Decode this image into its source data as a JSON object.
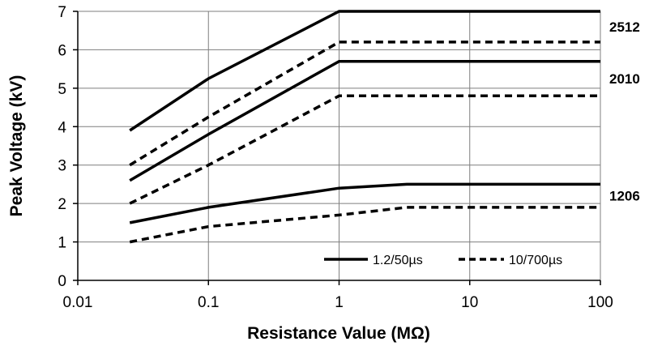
{
  "chart_data": {
    "type": "line",
    "xlabel": "Resistance Value (MΩ)",
    "ylabel": "Peak Voltage (kV)",
    "xscale": "log",
    "xlim": [
      0.01,
      100
    ],
    "ylim": [
      0,
      7
    ],
    "x_ticks": [
      "0.01",
      "0.1",
      "1",
      "10",
      "100"
    ],
    "y_ticks": [
      "0",
      "1",
      "2",
      "3",
      "4",
      "5",
      "6",
      "7"
    ],
    "grid": true,
    "legend_position": "bottom-right",
    "legend": [
      {
        "label": "1.2/50µs",
        "style": "solid"
      },
      {
        "label": "10/700µs",
        "style": "dashed"
      }
    ],
    "series": [
      {
        "group": "2512",
        "pulse": "1.2/50µs",
        "style": "solid",
        "x": [
          0.025,
          0.1,
          1,
          100
        ],
        "y": [
          3.9,
          5.25,
          7.0,
          7.0
        ]
      },
      {
        "group": "2512",
        "pulse": "10/700µs",
        "style": "dashed",
        "x": [
          0.025,
          0.1,
          1,
          100
        ],
        "y": [
          3.0,
          4.25,
          6.2,
          6.2
        ]
      },
      {
        "group": "2010",
        "pulse": "1.2/50µs",
        "style": "solid",
        "x": [
          0.025,
          0.1,
          1,
          100
        ],
        "y": [
          2.6,
          3.8,
          5.7,
          5.7
        ]
      },
      {
        "group": "2010",
        "pulse": "10/700µs",
        "style": "dashed",
        "x": [
          0.025,
          0.1,
          1,
          100
        ],
        "y": [
          2.0,
          3.0,
          4.8,
          4.8
        ]
      },
      {
        "group": "1206",
        "pulse": "1.2/50µs",
        "style": "solid",
        "x": [
          0.025,
          0.1,
          1,
          3.3,
          100
        ],
        "y": [
          1.5,
          1.9,
          2.4,
          2.5,
          2.5
        ]
      },
      {
        "group": "1206",
        "pulse": "10/700µs",
        "style": "dashed",
        "x": [
          0.025,
          0.1,
          1,
          3.3,
          100
        ],
        "y": [
          1.0,
          1.4,
          1.7,
          1.9,
          1.9
        ]
      }
    ],
    "series_labels": [
      {
        "text": "2512",
        "y": 6.6
      },
      {
        "text": "2010",
        "y": 5.25
      },
      {
        "text": "1206",
        "y": 2.2
      }
    ]
  },
  "colors": {
    "line": "#000000",
    "grid": "#7f7f7f",
    "background": "#ffffff"
  }
}
